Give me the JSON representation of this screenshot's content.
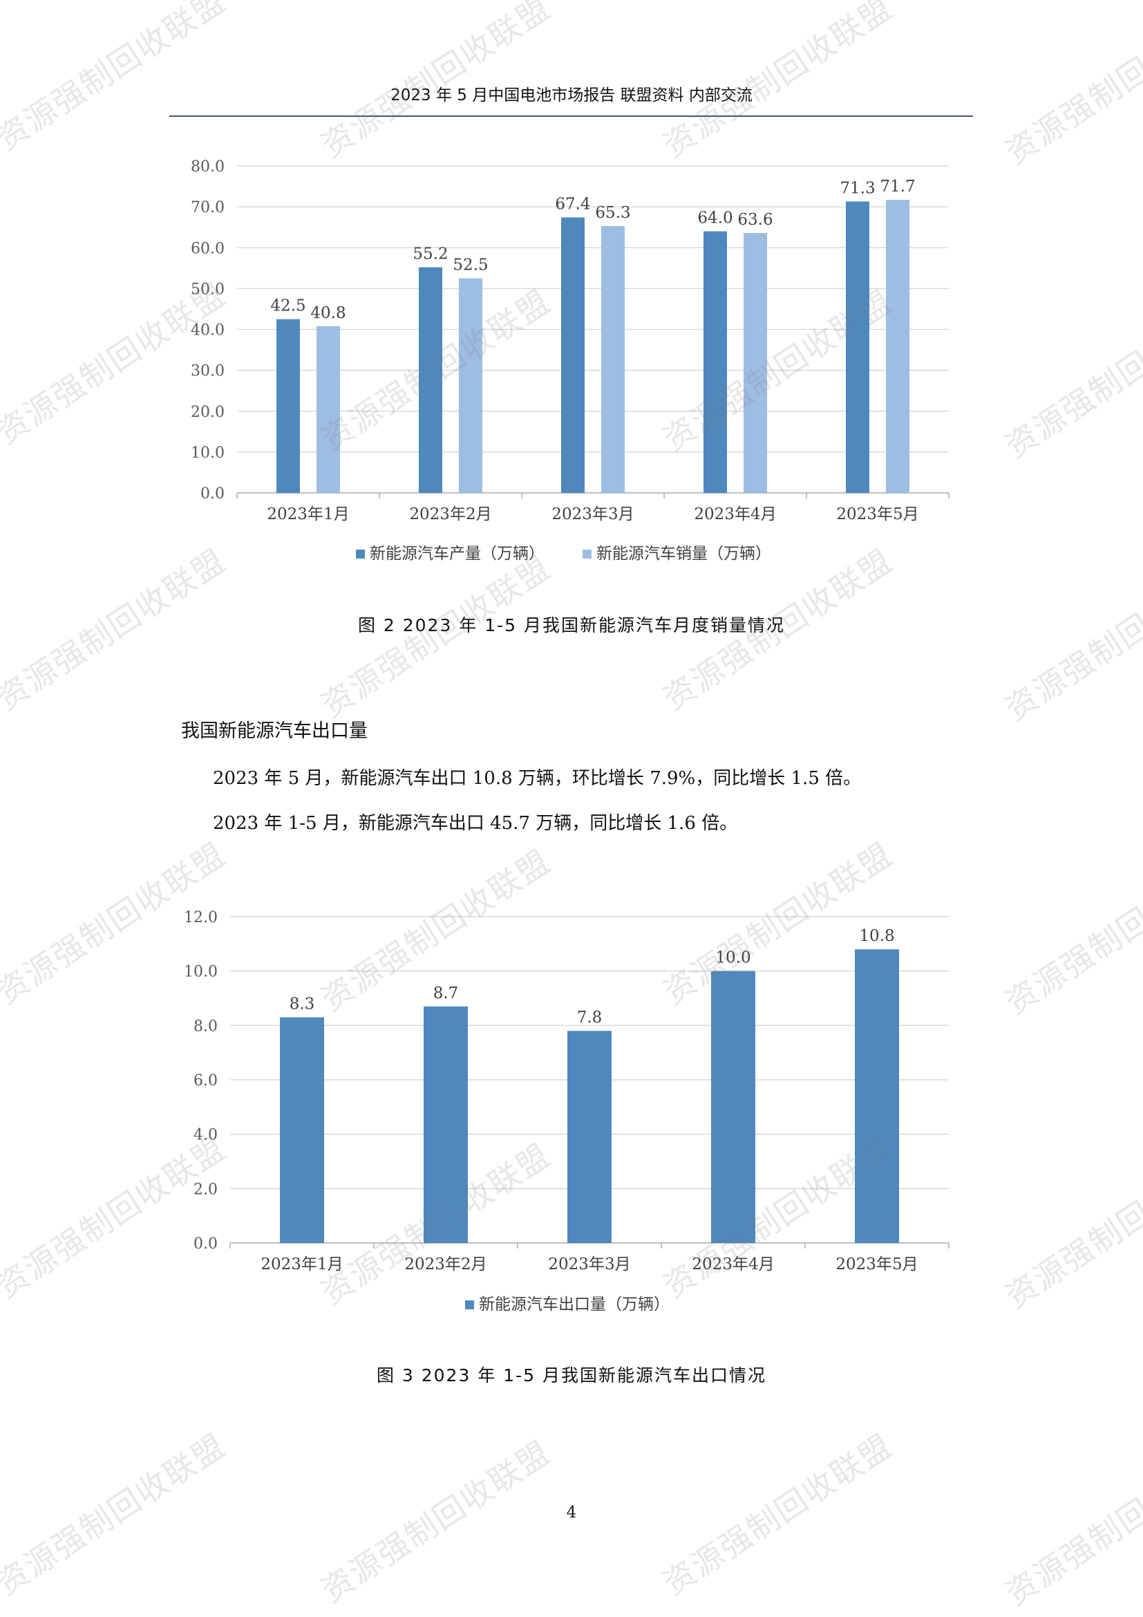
{
  "header": {
    "title": "2023 年 5 月中国电池市场报告 联盟资料 内部交流"
  },
  "watermark_text": "资源强制回收联盟",
  "colors": {
    "dark_blue": "#4f88bd",
    "light_blue": "#9dbde2",
    "grid": "#d9d9d9",
    "axis": "#bfbfbf",
    "rule": "#44546a"
  },
  "chart_data": [
    {
      "type": "bar",
      "categories": [
        "2023年1月",
        "2023年2月",
        "2023年3月",
        "2023年4月",
        "2023年5月"
      ],
      "series": [
        {
          "name": "新能源汽车产量（万辆）",
          "values": [
            42.5,
            55.2,
            67.4,
            64.0,
            71.3
          ]
        },
        {
          "name": "新能源汽车销量（万辆）",
          "values": [
            40.8,
            52.5,
            65.3,
            63.6,
            71.7
          ]
        }
      ],
      "ylim": [
        0,
        80
      ],
      "yticks": [
        "0.0",
        "10.0",
        "20.0",
        "30.0",
        "40.0",
        "50.0",
        "60.0",
        "70.0",
        "80.0"
      ],
      "grid": true,
      "legend": "bottom"
    },
    {
      "type": "bar",
      "categories": [
        "2023年1月",
        "2023年2月",
        "2023年3月",
        "2023年4月",
        "2023年5月"
      ],
      "series": [
        {
          "name": "新能源汽车出口量（万辆）",
          "values": [
            8.3,
            8.7,
            7.8,
            10.0,
            10.8
          ]
        }
      ],
      "ylim": [
        0,
        12
      ],
      "yticks": [
        "0.0",
        "2.0",
        "4.0",
        "6.0",
        "8.0",
        "10.0",
        "12.0"
      ],
      "grid": true,
      "legend": "bottom"
    }
  ],
  "captions": {
    "figure2": "图 2 2023 年 1-5 月我国新能源汽车月度销量情况",
    "figure3": "图 3 2023 年 1-5 月我国新能源汽车出口情况"
  },
  "section": {
    "heading": "我国新能源汽车出口量",
    "paragraphs": [
      "2023 年 5 月，新能源汽车出口 10.8 万辆，环比增长 7.9%，同比增长 1.5 倍。",
      "2023 年 1-5 月，新能源汽车出口 45.7 万辆，同比增长 1.6 倍。"
    ]
  },
  "page_number": "4"
}
